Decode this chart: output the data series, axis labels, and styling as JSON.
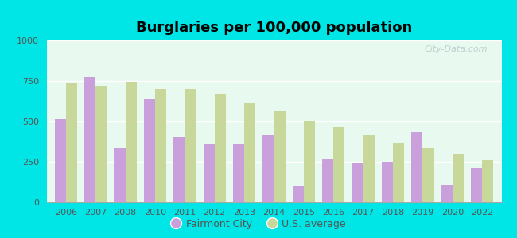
{
  "title": "Burglaries per 100,000 population",
  "years": [
    2006,
    2007,
    2008,
    2010,
    2011,
    2012,
    2013,
    2014,
    2015,
    2016,
    2017,
    2018,
    2019,
    2020,
    2022
  ],
  "fairmont_city": [
    515,
    775,
    335,
    635,
    400,
    360,
    365,
    415,
    105,
    265,
    245,
    248,
    430,
    110,
    210
  ],
  "us_average": [
    740,
    720,
    745,
    700,
    700,
    665,
    615,
    565,
    500,
    465,
    415,
    370,
    335,
    300,
    260
  ],
  "fairmont_color": "#c9a0dc",
  "us_color": "#c8d89a",
  "background_color": "#e8faf0",
  "outer_background": "#00e5e5",
  "ylim": [
    0,
    1000
  ],
  "yticks": [
    0,
    250,
    500,
    750,
    1000
  ],
  "legend_labels": [
    "Fairmont City",
    "U.S. average"
  ],
  "watermark": "City-Data.com",
  "bar_width": 0.38
}
